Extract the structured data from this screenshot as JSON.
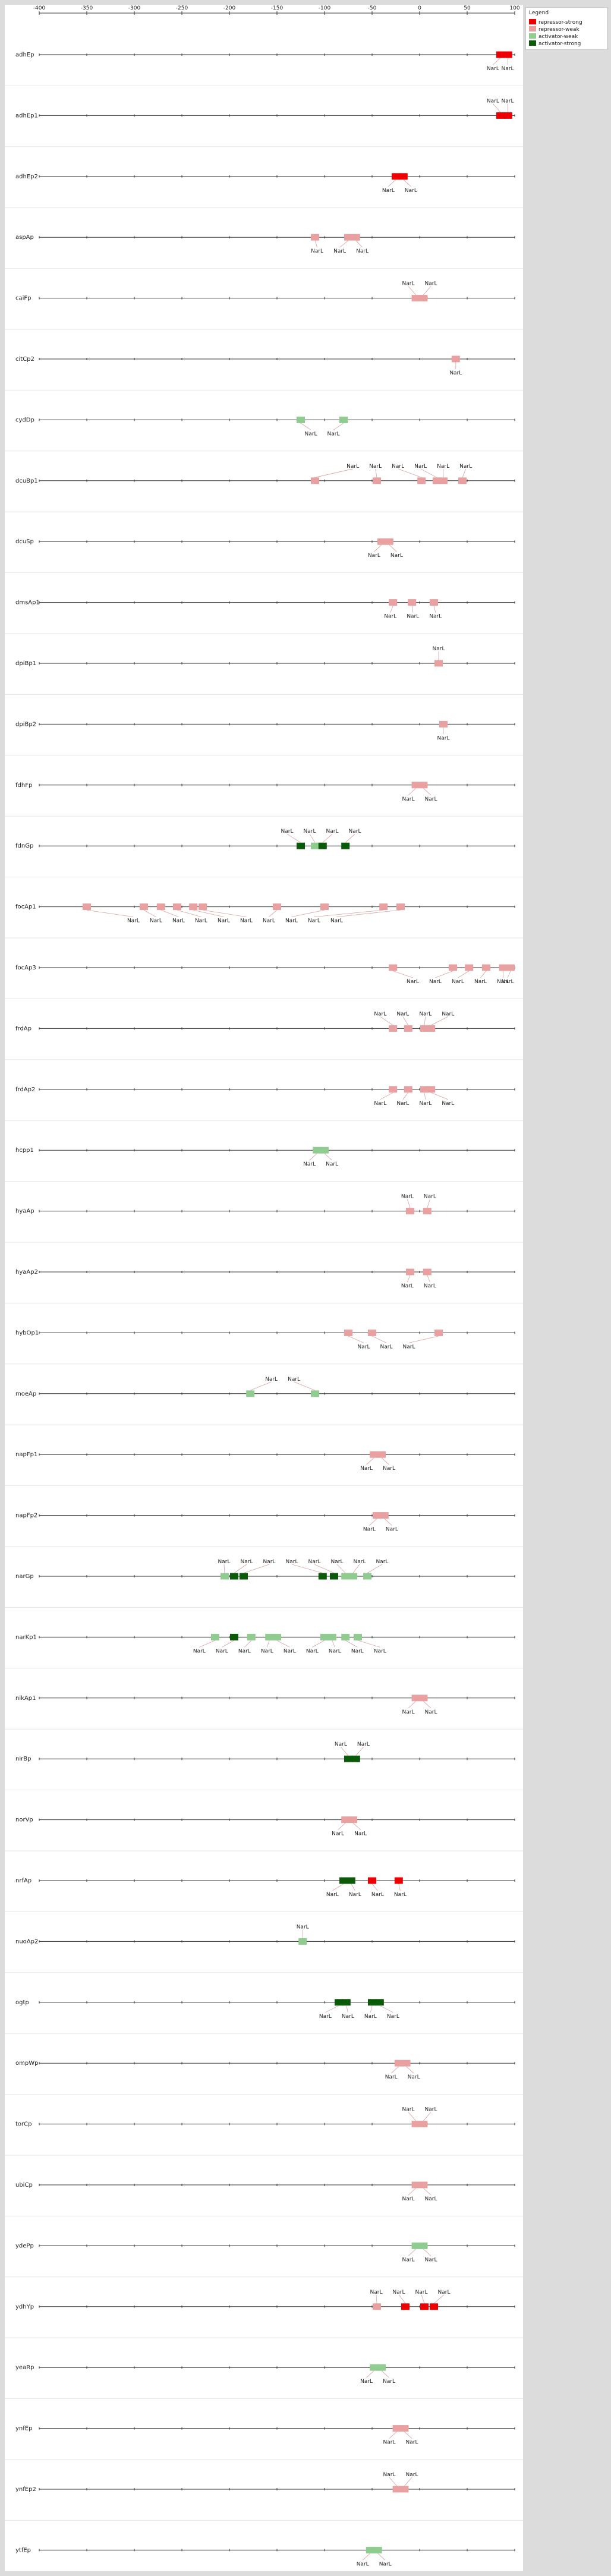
{
  "legend": {
    "title": "Legend",
    "items": [
      {
        "label": "repressor-strong",
        "color": "#ee0000"
      },
      {
        "label": "repressor-weak",
        "color": "#e8a0a0"
      },
      {
        "label": "activator-weak",
        "color": "#90cc90"
      },
      {
        "label": "activator-strong",
        "color": "#0a5a0a"
      }
    ]
  },
  "axis": {
    "min": -400,
    "max": 100,
    "ticks": [
      -400,
      -350,
      -300,
      -250,
      -200,
      -150,
      -100,
      -50,
      0,
      50,
      100
    ]
  },
  "site_label": "NarL",
  "rows": [
    {
      "name": "adhEp",
      "sites": [
        {
          "pos": 85,
          "type": "repressor-strong"
        },
        {
          "pos": 93,
          "type": "repressor-strong"
        }
      ]
    },
    {
      "name": "adhEp1",
      "sites": [
        {
          "pos": 85,
          "type": "repressor-strong"
        },
        {
          "pos": 93,
          "type": "repressor-strong"
        }
      ]
    },
    {
      "name": "adhEp2",
      "sites": [
        {
          "pos": -25,
          "type": "repressor-strong"
        },
        {
          "pos": -17,
          "type": "repressor-strong"
        }
      ]
    },
    {
      "name": "aspAp",
      "sites": [
        {
          "pos": -110,
          "type": "repressor-weak"
        },
        {
          "pos": -75,
          "type": "repressor-weak"
        },
        {
          "pos": -67,
          "type": "repressor-weak"
        }
      ]
    },
    {
      "name": "caiFp",
      "sites": [
        {
          "pos": -4,
          "type": "repressor-weak"
        },
        {
          "pos": 4,
          "type": "repressor-weak"
        }
      ]
    },
    {
      "name": "citCp2",
      "sites": [
        {
          "pos": 38,
          "type": "repressor-weak"
        }
      ]
    },
    {
      "name": "cydDp",
      "sites": [
        {
          "pos": -125,
          "type": "activator-weak"
        },
        {
          "pos": -80,
          "type": "activator-weak"
        }
      ]
    },
    {
      "name": "dcuBp1",
      "sites": [
        {
          "pos": -110,
          "type": "repressor-weak"
        },
        {
          "pos": -45,
          "type": "repressor-weak"
        },
        {
          "pos": 2,
          "type": "repressor-weak"
        },
        {
          "pos": 18,
          "type": "repressor-weak"
        },
        {
          "pos": 25,
          "type": "repressor-weak"
        },
        {
          "pos": 45,
          "type": "repressor-weak"
        }
      ]
    },
    {
      "name": "dcuSp",
      "sites": [
        {
          "pos": -40,
          "type": "repressor-weak"
        },
        {
          "pos": -32,
          "type": "repressor-weak"
        }
      ]
    },
    {
      "name": "dmsAp1",
      "sites": [
        {
          "pos": -28,
          "type": "repressor-weak"
        },
        {
          "pos": -8,
          "type": "repressor-weak"
        },
        {
          "pos": 15,
          "type": "repressor-weak"
        }
      ]
    },
    {
      "name": "dpiBp1",
      "sites": [
        {
          "pos": 20,
          "type": "repressor-weak"
        }
      ]
    },
    {
      "name": "dpiBp2",
      "sites": [
        {
          "pos": 25,
          "type": "repressor-weak"
        }
      ]
    },
    {
      "name": "fdhFp",
      "sites": [
        {
          "pos": -4,
          "type": "repressor-weak"
        },
        {
          "pos": 4,
          "type": "repressor-weak"
        }
      ]
    },
    {
      "name": "fdnGp",
      "sites": [
        {
          "pos": -125,
          "type": "activator-strong"
        },
        {
          "pos": -110,
          "type": "activator-weak"
        },
        {
          "pos": -102,
          "type": "activator-strong"
        },
        {
          "pos": -78,
          "type": "activator-strong"
        }
      ]
    },
    {
      "name": "focAp1",
      "sites": [
        {
          "pos": -350,
          "type": "repressor-weak"
        },
        {
          "pos": -290,
          "type": "repressor-weak"
        },
        {
          "pos": -272,
          "type": "repressor-weak"
        },
        {
          "pos": -255,
          "type": "repressor-weak"
        },
        {
          "pos": -238,
          "type": "repressor-weak"
        },
        {
          "pos": -228,
          "type": "repressor-weak"
        },
        {
          "pos": -150,
          "type": "repressor-weak"
        },
        {
          "pos": -100,
          "type": "repressor-weak"
        },
        {
          "pos": -38,
          "type": "repressor-weak"
        },
        {
          "pos": -20,
          "type": "repressor-weak"
        }
      ]
    },
    {
      "name": "focAp3",
      "sites": [
        {
          "pos": -28,
          "type": "repressor-weak"
        },
        {
          "pos": 35,
          "type": "repressor-weak"
        },
        {
          "pos": 52,
          "type": "repressor-weak"
        },
        {
          "pos": 70,
          "type": "repressor-weak"
        },
        {
          "pos": 88,
          "type": "repressor-weak"
        },
        {
          "pos": 96,
          "type": "repressor-weak"
        }
      ]
    },
    {
      "name": "frdAp",
      "sites": [
        {
          "pos": -28,
          "type": "repressor-weak"
        },
        {
          "pos": -12,
          "type": "repressor-weak"
        },
        {
          "pos": 5,
          "type": "repressor-weak"
        },
        {
          "pos": 12,
          "type": "repressor-weak"
        }
      ]
    },
    {
      "name": "frdAp2",
      "sites": [
        {
          "pos": -28,
          "type": "repressor-weak"
        },
        {
          "pos": -12,
          "type": "repressor-weak"
        },
        {
          "pos": 5,
          "type": "repressor-weak"
        },
        {
          "pos": 12,
          "type": "repressor-weak"
        }
      ]
    },
    {
      "name": "hcpp1",
      "sites": [
        {
          "pos": -108,
          "type": "activator-weak"
        },
        {
          "pos": -100,
          "type": "activator-weak"
        }
      ]
    },
    {
      "name": "hyaAp",
      "sites": [
        {
          "pos": -10,
          "type": "repressor-weak"
        },
        {
          "pos": 8,
          "type": "repressor-weak"
        }
      ]
    },
    {
      "name": "hyaAp2",
      "sites": [
        {
          "pos": -10,
          "type": "repressor-weak"
        },
        {
          "pos": 8,
          "type": "repressor-weak"
        }
      ]
    },
    {
      "name": "hybOp1",
      "sites": [
        {
          "pos": -75,
          "type": "repressor-weak"
        },
        {
          "pos": -50,
          "type": "repressor-weak"
        },
        {
          "pos": 20,
          "type": "repressor-weak"
        }
      ]
    },
    {
      "name": "moeAp",
      "sites": [
        {
          "pos": -178,
          "type": "activator-weak"
        },
        {
          "pos": -110,
          "type": "activator-weak"
        }
      ]
    },
    {
      "name": "napFp1",
      "sites": [
        {
          "pos": -48,
          "type": "repressor-weak"
        },
        {
          "pos": -40,
          "type": "repressor-weak"
        }
      ]
    },
    {
      "name": "napFp2",
      "sites": [
        {
          "pos": -45,
          "type": "repressor-weak"
        },
        {
          "pos": -37,
          "type": "repressor-weak"
        }
      ]
    },
    {
      "name": "narGp",
      "sites": [
        {
          "pos": -205,
          "type": "activator-weak"
        },
        {
          "pos": -195,
          "type": "activator-strong"
        },
        {
          "pos": -185,
          "type": "activator-strong"
        },
        {
          "pos": -102,
          "type": "activator-strong"
        },
        {
          "pos": -90,
          "type": "activator-strong"
        },
        {
          "pos": -78,
          "type": "activator-weak"
        },
        {
          "pos": -70,
          "type": "activator-weak"
        },
        {
          "pos": -55,
          "type": "activator-weak"
        }
      ]
    },
    {
      "name": "narKp1",
      "sites": [
        {
          "pos": -215,
          "type": "activator-weak"
        },
        {
          "pos": -195,
          "type": "activator-strong"
        },
        {
          "pos": -177,
          "type": "activator-weak"
        },
        {
          "pos": -158,
          "type": "activator-weak"
        },
        {
          "pos": -150,
          "type": "activator-weak"
        },
        {
          "pos": -100,
          "type": "activator-weak"
        },
        {
          "pos": -92,
          "type": "activator-weak"
        },
        {
          "pos": -78,
          "type": "activator-weak"
        },
        {
          "pos": -65,
          "type": "activator-weak"
        }
      ]
    },
    {
      "name": "nikAp1",
      "sites": [
        {
          "pos": -4,
          "type": "repressor-weak"
        },
        {
          "pos": 4,
          "type": "repressor-weak"
        }
      ]
    },
    {
      "name": "nirBp",
      "sites": [
        {
          "pos": -75,
          "type": "activator-strong"
        },
        {
          "pos": -67,
          "type": "activator-strong"
        }
      ]
    },
    {
      "name": "norVp",
      "sites": [
        {
          "pos": -78,
          "type": "repressor-weak"
        },
        {
          "pos": -70,
          "type": "repressor-weak"
        }
      ]
    },
    {
      "name": "nrfAp",
      "sites": [
        {
          "pos": -80,
          "type": "activator-strong"
        },
        {
          "pos": -72,
          "type": "activator-strong"
        },
        {
          "pos": -50,
          "type": "repressor-strong"
        },
        {
          "pos": -22,
          "type": "repressor-strong"
        }
      ]
    },
    {
      "name": "nuoAp2",
      "sites": [
        {
          "pos": -123,
          "type": "activator-weak"
        }
      ]
    },
    {
      "name": "ogtp",
      "sites": [
        {
          "pos": -85,
          "type": "activator-strong"
        },
        {
          "pos": -77,
          "type": "activator-strong"
        },
        {
          "pos": -50,
          "type": "activator-strong"
        },
        {
          "pos": -42,
          "type": "activator-strong"
        }
      ]
    },
    {
      "name": "ompWp",
      "sites": [
        {
          "pos": -22,
          "type": "repressor-weak"
        },
        {
          "pos": -14,
          "type": "repressor-weak"
        }
      ]
    },
    {
      "name": "torCp",
      "sites": [
        {
          "pos": -4,
          "type": "repressor-weak"
        },
        {
          "pos": 4,
          "type": "repressor-weak"
        }
      ]
    },
    {
      "name": "ubiCp",
      "sites": [
        {
          "pos": -4,
          "type": "repressor-weak"
        },
        {
          "pos": 4,
          "type": "repressor-weak"
        }
      ]
    },
    {
      "name": "ydePp",
      "sites": [
        {
          "pos": -4,
          "type": "activator-weak"
        },
        {
          "pos": 4,
          "type": "activator-weak"
        }
      ]
    },
    {
      "name": "ydhYp",
      "sites": [
        {
          "pos": -45,
          "type": "repressor-weak"
        },
        {
          "pos": -15,
          "type": "repressor-strong"
        },
        {
          "pos": 5,
          "type": "repressor-strong"
        },
        {
          "pos": 15,
          "type": "repressor-strong"
        }
      ]
    },
    {
      "name": "yeaRp",
      "sites": [
        {
          "pos": -48,
          "type": "activator-weak"
        },
        {
          "pos": -40,
          "type": "activator-weak"
        }
      ]
    },
    {
      "name": "ynfEp",
      "sites": [
        {
          "pos": -24,
          "type": "repressor-weak"
        },
        {
          "pos": -16,
          "type": "repressor-weak"
        }
      ]
    },
    {
      "name": "ynfEp2",
      "sites": [
        {
          "pos": -24,
          "type": "repressor-weak"
        },
        {
          "pos": -16,
          "type": "repressor-weak"
        }
      ]
    },
    {
      "name": "ytfEp",
      "sites": [
        {
          "pos": -52,
          "type": "activator-weak"
        },
        {
          "pos": -44,
          "type": "activator-weak"
        }
      ]
    }
  ]
}
